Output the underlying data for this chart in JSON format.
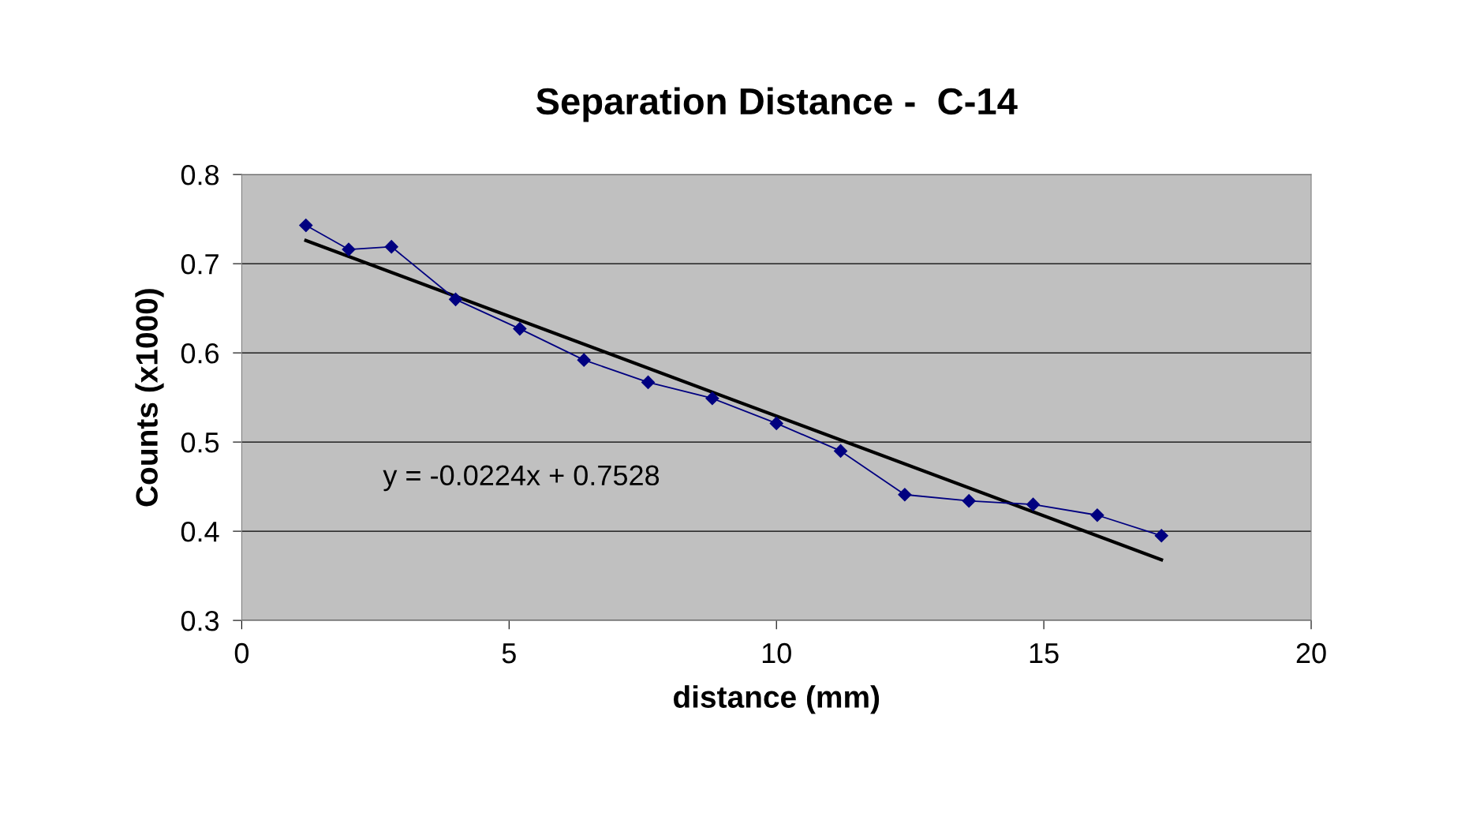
{
  "chart_data": {
    "type": "line",
    "title": "Separation Distance -  C-14",
    "xlabel": "distance (mm)",
    "ylabel": "Counts (x1000)",
    "series": [
      {
        "color": "#000080",
        "marker": "diamond",
        "x": [
          1.2,
          2.0,
          2.8,
          4.0,
          5.2,
          6.4,
          7.6,
          8.8,
          10.0,
          11.2,
          12.4,
          13.6,
          14.8,
          16.0,
          17.2
        ],
        "values": [
          0.743,
          0.716,
          0.719,
          0.66,
          0.627,
          0.592,
          0.567,
          0.549,
          0.521,
          0.49,
          0.441,
          0.434,
          0.43,
          0.418,
          0.395
        ]
      },
      {
        "color": "#000000",
        "marker": "none",
        "x": [
          1.2,
          17.2
        ],
        "values": [
          0.726,
          0.368
        ]
      }
    ],
    "annotations": [
      "y = -0.0224x + 0.7528"
    ],
    "xlim": [
      0,
      20
    ],
    "xticks": [
      0,
      5,
      10,
      15,
      20
    ],
    "ylim": [
      0.3,
      0.8
    ],
    "yticks": [
      0.3,
      0.4,
      0.5,
      0.6,
      0.7,
      0.8
    ],
    "grid": "y",
    "legend": false
  }
}
